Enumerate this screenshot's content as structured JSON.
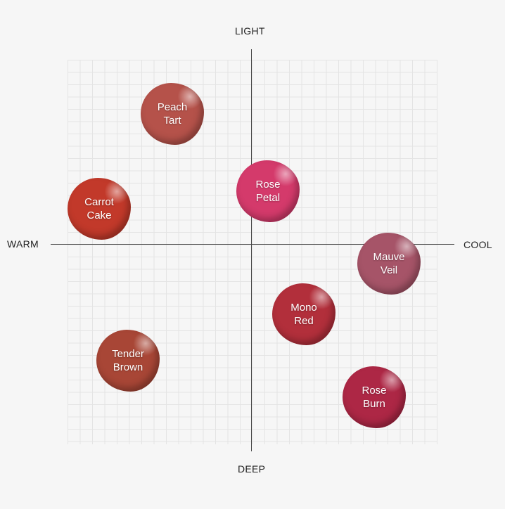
{
  "axes": {
    "top": "LIGHT",
    "bottom": "DEEP",
    "left": "WARM",
    "right": "COOL"
  },
  "nodes": [
    {
      "label": "Peach Tart",
      "color": "#b5524a"
    },
    {
      "label": "Rose Petal",
      "color": "#d43a6b"
    },
    {
      "label": "Carrot Cake",
      "color": "#c2392a"
    },
    {
      "label": "Mauve Veil",
      "color": "#a65468"
    },
    {
      "label": "Mono Red",
      "color": "#b22f3b"
    },
    {
      "label": "Tender Brown",
      "color": "#a84636"
    },
    {
      "label": "Rose Burn",
      "color": "#ad2745"
    }
  ]
}
